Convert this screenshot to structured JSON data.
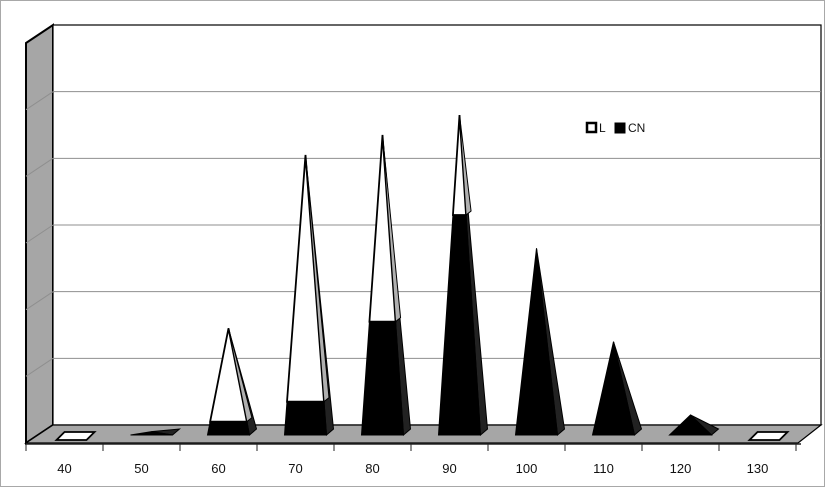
{
  "chart_data": {
    "type": "bar",
    "style": "3d-pyramid-stacked",
    "categories": [
      "40",
      "50",
      "60",
      "70",
      "80",
      "90",
      "100",
      "110",
      "120",
      "130"
    ],
    "series": [
      {
        "name": "L",
        "color": "#ffffff",
        "values": [
          0,
          0,
          1.4,
          3.7,
          2.8,
          1.5,
          0,
          0,
          0,
          0
        ]
      },
      {
        "name": "CN",
        "color": "#000000",
        "values": [
          0,
          0.05,
          0.2,
          0.5,
          1.7,
          3.3,
          2.8,
          1.4,
          0.3,
          0
        ]
      }
    ],
    "title": "",
    "xlabel": "",
    "ylabel": "",
    "ylim": [
      0,
      6
    ],
    "grid": true,
    "legend_position": "top-right (inside plot)"
  }
}
